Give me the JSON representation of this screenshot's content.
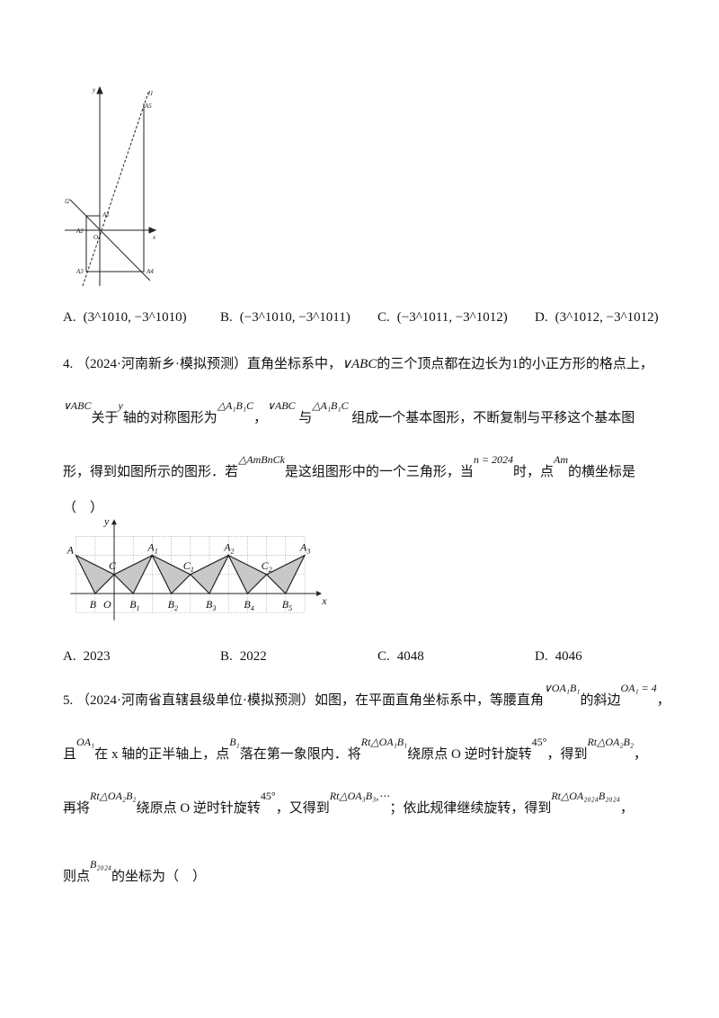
{
  "q3": {
    "figure_labels": {
      "y": "y",
      "x": "x",
      "l1": "l1",
      "l2": "l2",
      "A1": "A1",
      "A2": "A2",
      "A3": "A3",
      "A4": "A4",
      "A5": "A5",
      "O": "O"
    },
    "options": [
      {
        "letter": "A.",
        "value": "(3^1010, −3^1010)"
      },
      {
        "letter": "B.",
        "value": "(−3^1010, −3^1011)"
      },
      {
        "letter": "C.",
        "value": "(−3^1011, −3^1012)"
      },
      {
        "letter": "D.",
        "value": "(3^1012, −3^1012)"
      }
    ]
  },
  "q4": {
    "number": "4.",
    "source": "（2024·河南新乡·模拟预测）",
    "line1_a": "直角坐标系中，",
    "tri": "∨ABC",
    "line1_b": "的三个顶点都在边长为",
    "one": "1",
    "line1_c": "的小正方形的格点上，",
    "line2_a": "关于",
    "yvar": "y",
    "line2_b": "轴的对称图形为",
    "tri2": "△A₁B₁C",
    "comma": "，",
    "line2_c": "与",
    "line2_d": "组成一个基本图形，不断复制与平移这个基本图",
    "line3_a": "形，得到如图所示的图形．若",
    "tri3": "△AmBnCk",
    "line3_b": "是这组图形中的一个三角形，当",
    "cond": "n = 2024",
    "line3_c": "时，点",
    "pt": "Am",
    "line3_d": "的横坐标是",
    "paren": "（　）",
    "figure_labels": [
      "A",
      "B",
      "C",
      "O",
      "B1",
      "A1",
      "B2",
      "C1",
      "B3",
      "A2",
      "B4",
      "C2",
      "B5",
      "A3",
      "x",
      "y"
    ],
    "options": [
      {
        "letter": "A.",
        "value": "2023"
      },
      {
        "letter": "B.",
        "value": "2022"
      },
      {
        "letter": "C.",
        "value": "4048"
      },
      {
        "letter": "D.",
        "value": "4046"
      }
    ]
  },
  "q5": {
    "number": "5.",
    "source": "（2024·河南省直辖县级单位·模拟预测）",
    "l1_a": "如图，在平面直角坐标系中，等腰直角",
    "tri": "∨OA₁B₁",
    "l1_b": "的斜边",
    "eq": "OA₁ = 4",
    "l1_c": "，",
    "l2_a": "且",
    "oa": "OA₁",
    "l2_b": "在 x 轴的正半轴上，点",
    "b1": "B₁",
    "l2_c": "落在第一象限内．将",
    "rt1": "Rt△OA₁B₁",
    "l2_d": "绕原点 O 逆时针旋转",
    "deg": "45°",
    "l2_e": "，得到",
    "rt2": "Rt△OA₂B₂",
    "l2_f": "，",
    "l3_a": "再将",
    "l3_b": "绕原点 O 逆时针旋转",
    "l3_c": "，又得到",
    "rt3": "Rt△OA₃B₃,⋯",
    "l3_d": "；依此规律继续旋转，得到",
    "rt4": "Rt△OA₂₀₂₄B₂₀₂₄",
    "l3_e": "，",
    "l4_a": "则点",
    "b2024": "B₂₀₂₄",
    "l4_b": "的坐标为（　）"
  }
}
